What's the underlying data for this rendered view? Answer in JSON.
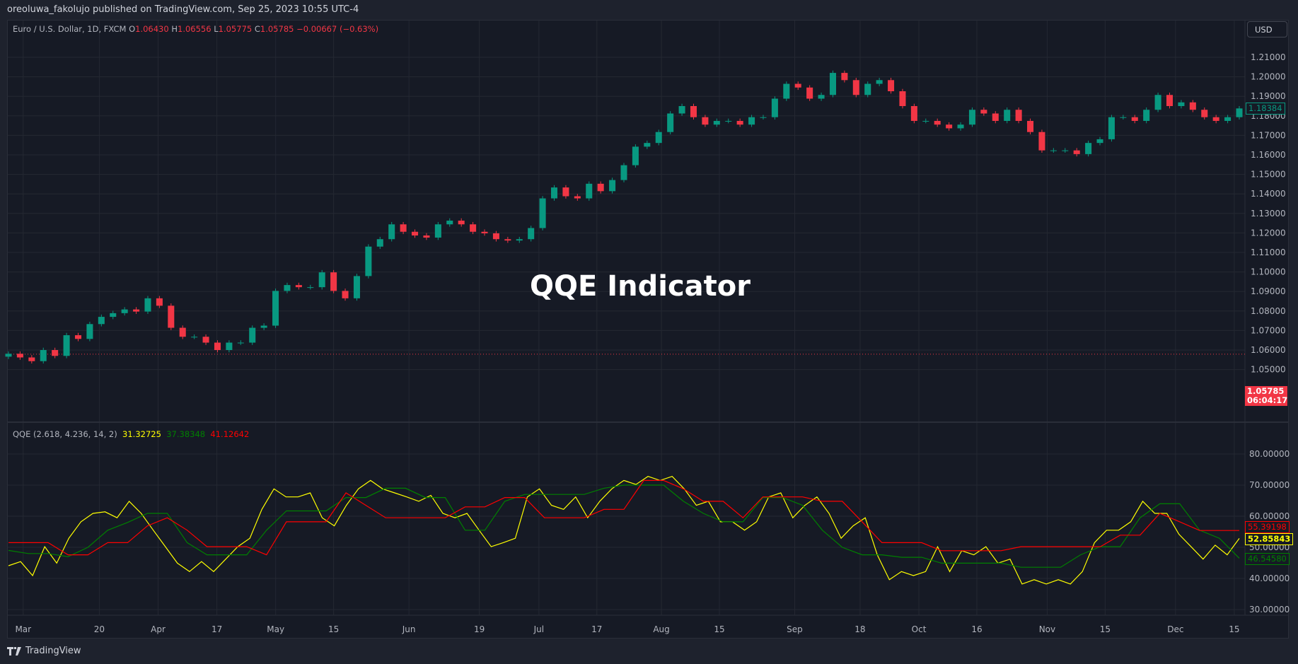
{
  "header": {
    "published": "oreoluwa_fakolujo published on TradingView.com, Sep 25, 2023 10:55 UTC-4"
  },
  "legend": {
    "symbol": "Euro / U.S. Dollar, 1D, FXCM",
    "o_label": "O",
    "o": "1.06430",
    "h_label": "H",
    "h": "1.06556",
    "l_label": "L",
    "l": "1.05775",
    "c_label": "C",
    "c": "1.05785",
    "change": "−0.00667 (−0.63%)"
  },
  "currency_button": "USD",
  "overlay_title": "QQE Indicator",
  "price_labels": {
    "last": "1.05785",
    "countdown": "06:04:17",
    "high_marker": "1.18384"
  },
  "qqe": {
    "legend": "QQE (2.618, 4.236, 14, 2)",
    "v1": "31.32725",
    "v2": "37.38348",
    "v3": "41.12642",
    "label_red": "55.39198",
    "label_yellow": "52.85843",
    "label_green": "46.54580"
  },
  "colors": {
    "up": "#089981",
    "down": "#f23645",
    "qqe_fast": "#ffff00",
    "qqe_green": "#008000",
    "qqe_red": "#ff0000",
    "background": "#161a25",
    "grid": "#242832"
  },
  "footer": {
    "brand": "TradingView"
  },
  "chart_data": [
    {
      "type": "candlestick",
      "title": "Euro / U.S. Dollar, 1D, FXCM",
      "y_ticks": [
        "1.21000",
        "1.20000",
        "1.19000",
        "1.18000",
        "1.17000",
        "1.16000",
        "1.15000",
        "1.14000",
        "1.13000",
        "1.12000",
        "1.11000",
        "1.10000",
        "1.09000",
        "1.08000",
        "1.07000",
        "1.06000",
        "1.05000"
      ],
      "ylim": [
        1.05,
        1.21
      ],
      "x_ticks": [
        "Mar",
        "20",
        "Apr",
        "17",
        "May",
        "15",
        "Jun",
        "19",
        "Jul",
        "17",
        "Aug",
        "15",
        "Sep",
        "18",
        "Oct",
        "16",
        "Nov",
        "15",
        "Dec",
        "15"
      ],
      "grid": true,
      "current_price": 1.05785,
      "closes": [
        1.0581,
        1.0562,
        1.0543,
        1.06,
        1.057,
        1.0676,
        1.0657,
        1.0733,
        1.077,
        1.0789,
        1.0808,
        1.0797,
        1.0865,
        1.0827,
        1.0714,
        1.0668,
        1.0668,
        1.0638,
        1.06,
        1.0638,
        1.0638,
        1.0714,
        1.0725,
        1.0903,
        1.0933,
        1.0922,
        1.0922,
        1.0998,
        1.0903,
        1.0865,
        1.0979,
        1.113,
        1.1168,
        1.1244,
        1.1206,
        1.1187,
        1.1176,
        1.1244,
        1.1263,
        1.1244,
        1.1206,
        1.1198,
        1.1168,
        1.1161,
        1.1168,
        1.1225,
        1.1377,
        1.1433,
        1.1388,
        1.1377,
        1.1452,
        1.1414,
        1.1471,
        1.1547,
        1.1642,
        1.1661,
        1.1717,
        1.1812,
        1.185,
        1.1793,
        1.1755,
        1.1774,
        1.1774,
        1.1755,
        1.1793,
        1.1793,
        1.1888,
        1.1964,
        1.1945,
        1.1888,
        1.1907,
        1.202,
        1.1983,
        1.1907,
        1.1964,
        1.1983,
        1.1926,
        1.185,
        1.1774,
        1.1774,
        1.1755,
        1.1736,
        1.1755,
        1.1831,
        1.1812,
        1.1774,
        1.1831,
        1.1774,
        1.1717,
        1.1623,
        1.1623,
        1.1623,
        1.1604,
        1.1661,
        1.168,
        1.1793,
        1.1793,
        1.1774,
        1.1831,
        1.1907,
        1.185,
        1.1869,
        1.1831,
        1.1793,
        1.1774,
        1.1793,
        1.1838
      ]
    },
    {
      "type": "line",
      "title": "QQE (2.618, 4.236, 14, 2)",
      "y_ticks": [
        "80.00000",
        "70.00000",
        "60.00000",
        "50.00000",
        "40.00000",
        "30.00000"
      ],
      "ylim": [
        30,
        80
      ],
      "grid": true,
      "series": [
        {
          "color": "#ffff00",
          "values": [
            44.1,
            45.4,
            40.9,
            50.2,
            44.9,
            52.9,
            58.2,
            60.9,
            61.4,
            59.5,
            64.8,
            60.9,
            55.5,
            50.2,
            44.9,
            42.2,
            45.4,
            42.2,
            46.2,
            50.2,
            52.9,
            62.2,
            68.8,
            66.2,
            66.2,
            67.5,
            59.5,
            56.9,
            63.5,
            68.8,
            71.5,
            68.8,
            67.5,
            66.2,
            64.8,
            66.7,
            60.9,
            59.5,
            60.9,
            55.5,
            50.2,
            51.5,
            52.9,
            66.2,
            68.8,
            63.5,
            62.2,
            66.2,
            59.5,
            64.8,
            68.8,
            71.5,
            70.2,
            72.8,
            71.5,
            72.8,
            68.8,
            63.5,
            64.8,
            58.2,
            58.2,
            55.5,
            58.2,
            66.2,
            67.5,
            59.5,
            63.5,
            66.2,
            60.9,
            52.9,
            56.9,
            59.5,
            47.6,
            39.6,
            42.2,
            40.9,
            42.2,
            50.2,
            42.2,
            48.9,
            47.6,
            50.2,
            44.9,
            46.2,
            38.2,
            39.6,
            38.2,
            39.6,
            38.2,
            42.2,
            51.5,
            55.5,
            55.5,
            58.2,
            64.8,
            60.9,
            60.9,
            54.2,
            50.2,
            46.2,
            50.7,
            47.6,
            52.86
          ]
        },
        {
          "color": "#008000",
          "values": [
            49,
            48,
            48,
            47,
            50,
            55.5,
            58,
            60.9,
            60.9,
            51.5,
            47.6,
            47.6,
            47.6,
            55.5,
            61.7,
            61.7,
            61.7,
            66,
            66,
            69,
            69,
            66,
            66,
            55.5,
            55.5,
            64.8,
            67,
            67,
            67,
            67,
            69,
            70,
            70,
            70,
            64.8,
            60.9,
            58.2,
            58.2,
            66,
            66,
            63.5,
            55.5,
            50,
            47.6,
            47.6,
            46.8,
            46.8,
            44.9,
            44.9,
            44.9,
            44.9,
            43.6,
            43.6,
            43.6,
            47.6,
            50.2,
            50.2,
            59.5,
            64,
            64,
            55.5,
            52.9,
            46.5
          ]
        },
        {
          "color": "#ff0000",
          "values": [
            51.5,
            51.5,
            51.5,
            47.6,
            47.6,
            51.5,
            51.5,
            56.9,
            59.5,
            55.5,
            50.2,
            50.2,
            50.2,
            47.6,
            58.2,
            58.2,
            58.2,
            67.5,
            63.5,
            59.5,
            59.5,
            59.5,
            59.5,
            63,
            63,
            66,
            66,
            59.5,
            59.5,
            59.5,
            62.2,
            62.2,
            71.5,
            71.5,
            68.8,
            64.8,
            64.8,
            59.5,
            66.2,
            66.2,
            66.2,
            64.8,
            64.8,
            58.2,
            51.5,
            51.5,
            51.5,
            48.9,
            48.9,
            48.9,
            48.9,
            50.2,
            50.2,
            50.2,
            50.2,
            50.2,
            53.9,
            53.9,
            60.9,
            58.2,
            55.4,
            55.4,
            55.4
          ]
        }
      ]
    }
  ]
}
